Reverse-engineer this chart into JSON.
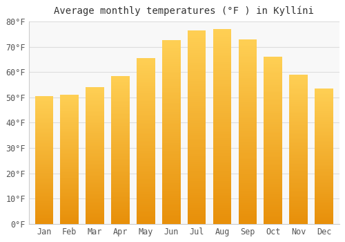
{
  "title": "Average monthly temperatures (°F ) in Kyllíni",
  "months": [
    "Jan",
    "Feb",
    "Mar",
    "Apr",
    "May",
    "Jun",
    "Jul",
    "Aug",
    "Sep",
    "Oct",
    "Nov",
    "Dec"
  ],
  "values": [
    50.5,
    51.0,
    54.0,
    58.5,
    65.5,
    72.5,
    76.5,
    77.0,
    73.0,
    66.0,
    59.0,
    53.5
  ],
  "bar_color_main": "#FFAA00",
  "bar_color_light": "#FFD055",
  "ylim": [
    0,
    80
  ],
  "yticks": [
    0,
    10,
    20,
    30,
    40,
    50,
    60,
    70,
    80
  ],
  "background_color": "#ffffff",
  "plot_bg_color": "#f8f8f8",
  "grid_color": "#dddddd",
  "title_fontsize": 10,
  "tick_fontsize": 8.5
}
